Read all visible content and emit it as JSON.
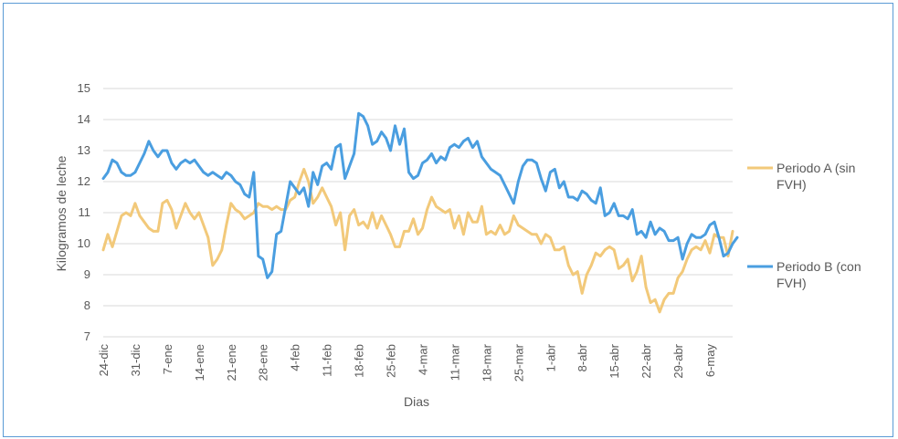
{
  "chart_data": {
    "type": "line",
    "xlabel": "Dias",
    "ylabel": "Kilogramos de leche",
    "ylim": [
      7,
      15
    ],
    "yticks": [
      7,
      8,
      9,
      10,
      11,
      12,
      13,
      14,
      15
    ],
    "grid": true,
    "legend_position": "right",
    "x_tick_labels": [
      "24-dic",
      "31-dic",
      "7-ene",
      "14-ene",
      "21-ene",
      "28-ene",
      "4-feb",
      "11-feb",
      "18-feb",
      "25-feb",
      "4-mar",
      "11-mar",
      "18-mar",
      "25-mar",
      "1-abr",
      "8-abr",
      "15-abr",
      "22-abr",
      "29-abr",
      "6-may"
    ],
    "series": [
      {
        "name": "Periodo A (sin FVH)",
        "color": "#f2c97a",
        "values": [
          9.8,
          10.3,
          9.9,
          10.4,
          10.9,
          11.0,
          10.9,
          11.3,
          10.9,
          10.7,
          10.5,
          10.4,
          10.4,
          11.3,
          11.4,
          11.1,
          10.5,
          10.9,
          11.3,
          11.0,
          10.8,
          11.0,
          10.6,
          10.2,
          9.3,
          9.5,
          9.8,
          10.6,
          11.3,
          11.1,
          11.0,
          10.8,
          10.9,
          11.0,
          11.3,
          11.2,
          11.2,
          11.1,
          11.2,
          11.1,
          11.1,
          11.4,
          11.5,
          12.0,
          12.4,
          12.0,
          11.3,
          11.5,
          11.8,
          11.5,
          11.2,
          10.6,
          11.0,
          9.8,
          10.9,
          11.1,
          10.6,
          10.7,
          10.5,
          11.0,
          10.5,
          10.9,
          10.6,
          10.3,
          9.9,
          9.9,
          10.4,
          10.4,
          10.8,
          10.3,
          10.5,
          11.1,
          11.5,
          11.2,
          11.1,
          11.0,
          11.1,
          10.5,
          10.9,
          10.3,
          11.0,
          10.7,
          10.7,
          11.2,
          10.3,
          10.4,
          10.3,
          10.6,
          10.3,
          10.4,
          10.9,
          10.6,
          10.5,
          10.4,
          10.3,
          10.3,
          10.0,
          10.3,
          10.2,
          9.8,
          9.8,
          9.9,
          9.3,
          9.0,
          9.1,
          8.4,
          9.0,
          9.3,
          9.7,
          9.6,
          9.8,
          9.9,
          9.8,
          9.2,
          9.3,
          9.5,
          8.8,
          9.1,
          9.6,
          8.6,
          8.1,
          8.2,
          7.8,
          8.2,
          8.4,
          8.4,
          8.9,
          9.1,
          9.5,
          9.8,
          9.9,
          9.8,
          10.1,
          9.7,
          10.3,
          10.2,
          10.2,
          9.6,
          10.4
        ]
      },
      {
        "name": "Periodo B (con FVH)",
        "color": "#4a9ee0",
        "values": [
          12.1,
          12.3,
          12.7,
          12.6,
          12.3,
          12.2,
          12.2,
          12.3,
          12.6,
          12.9,
          13.3,
          13.0,
          12.8,
          13.0,
          13.0,
          12.6,
          12.4,
          12.6,
          12.7,
          12.6,
          12.7,
          12.5,
          12.3,
          12.2,
          12.3,
          12.2,
          12.1,
          12.3,
          12.2,
          12.0,
          11.9,
          11.6,
          11.5,
          12.3,
          9.6,
          9.5,
          8.9,
          9.1,
          10.3,
          10.4,
          11.2,
          12.0,
          11.8,
          11.6,
          11.8,
          11.2,
          12.3,
          11.9,
          12.5,
          12.6,
          12.4,
          13.1,
          13.2,
          12.1,
          12.5,
          12.9,
          14.2,
          14.1,
          13.8,
          13.2,
          13.3,
          13.6,
          13.4,
          13.0,
          13.8,
          13.2,
          13.7,
          12.3,
          12.1,
          12.2,
          12.6,
          12.7,
          12.9,
          12.6,
          12.8,
          12.7,
          13.1,
          13.2,
          13.1,
          13.3,
          13.4,
          13.1,
          13.3,
          12.8,
          12.6,
          12.4,
          12.3,
          12.2,
          11.9,
          11.6,
          11.3,
          12.0,
          12.5,
          12.7,
          12.7,
          12.6,
          12.1,
          11.7,
          12.3,
          12.4,
          11.8,
          12.0,
          11.5,
          11.5,
          11.4,
          11.7,
          11.6,
          11.4,
          11.3,
          11.8,
          10.9,
          11.0,
          11.3,
          10.9,
          10.9,
          10.8,
          11.1,
          10.3,
          10.4,
          10.2,
          10.7,
          10.3,
          10.5,
          10.4,
          10.1,
          10.1,
          10.2,
          9.5,
          10.0,
          10.3,
          10.2,
          10.2,
          10.3,
          10.6,
          10.7,
          10.2,
          9.6,
          9.7,
          10.0,
          10.2
        ]
      }
    ]
  },
  "legend": {
    "a_line1": "Periodo A (sin",
    "a_line2": "FVH)",
    "b_line1": "Periodo B (con",
    "b_line2": "FVH)"
  }
}
